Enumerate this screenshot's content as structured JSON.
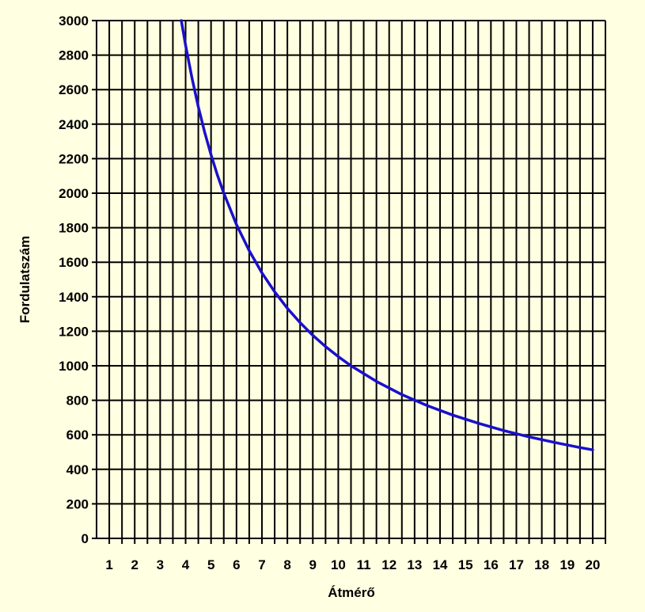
{
  "chart_data": {
    "type": "line",
    "title": "",
    "xlabel": "Átmérő",
    "ylabel": "Fordulatszám",
    "x_ticks": [
      1,
      2,
      3,
      4,
      5,
      6,
      7,
      8,
      9,
      10,
      11,
      12,
      13,
      14,
      15,
      16,
      17,
      18,
      19,
      20
    ],
    "x_lim": [
      0,
      20
    ],
    "y_ticks": [
      0,
      200,
      400,
      600,
      800,
      1000,
      1200,
      1400,
      1600,
      1800,
      2000,
      2200,
      2400,
      2600,
      2800,
      3000
    ],
    "y_lim": [
      0,
      3000
    ],
    "grid": true,
    "series": [
      {
        "color": "#1A10CC",
        "x": [
          3.33,
          3.5,
          3.75,
          4,
          4.25,
          4.5,
          4.75,
          5,
          5.5,
          6,
          6.5,
          7,
          7.5,
          8,
          8.5,
          9,
          9.5,
          10,
          11,
          12,
          13,
          14,
          15,
          16,
          17,
          18,
          19,
          19.5
        ],
        "y": [
          3000,
          2857,
          2667,
          2500,
          2353,
          2222,
          2105,
          2000,
          1818,
          1667,
          1538,
          1429,
          1333,
          1250,
          1176,
          1111,
          1053,
          1000,
          909,
          833,
          769,
          714,
          667,
          625,
          588,
          556,
          526,
          513
        ]
      }
    ],
    "colors": {
      "background": "#FFFFE1",
      "plot_area": "#FFFFE1",
      "grid": "#000000",
      "line": "#1A10CC"
    }
  }
}
